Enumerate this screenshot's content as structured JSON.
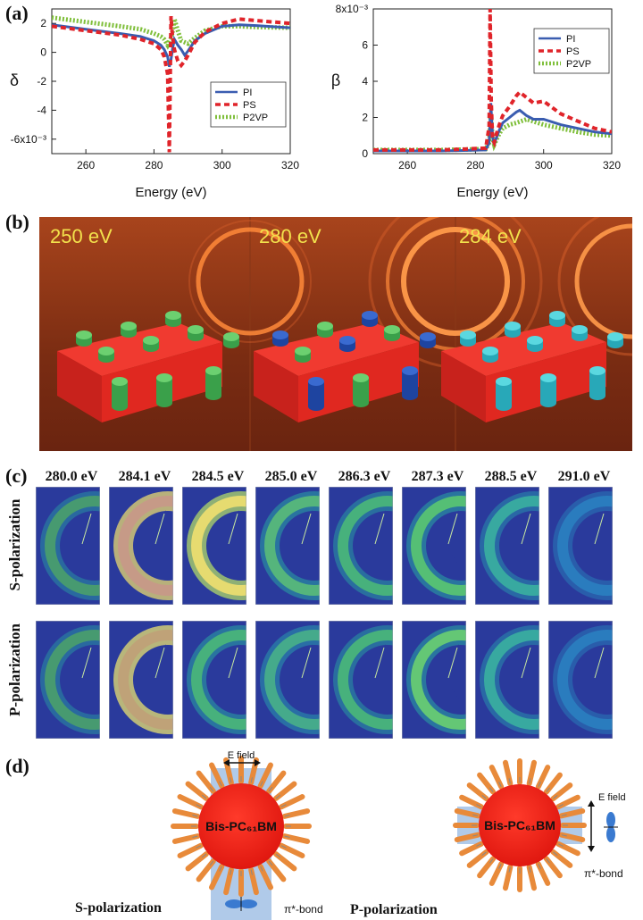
{
  "panels": {
    "a": "(a)",
    "b": "(b)",
    "c": "(c)",
    "d": "(d)"
  },
  "chart_data": [
    {
      "type": "line",
      "ylabel": "δ",
      "xlabel": "Energy (eV)",
      "xlim": [
        250,
        320
      ],
      "ylim": [
        -7,
        3
      ],
      "xticks": [
        "260",
        "280",
        "300",
        "320"
      ],
      "yticks": [
        "2",
        "0",
        "-2",
        "-4",
        "-6x10⁻³"
      ],
      "legend": [
        "PI",
        "PS",
        "P2VP"
      ],
      "series": [
        {
          "name": "PI",
          "color": "#3a5db0",
          "x": [
            250,
            260,
            270,
            276,
            280,
            282,
            283,
            284,
            284.5,
            285,
            285.5,
            286,
            287,
            288,
            289,
            290,
            292,
            295,
            300,
            305,
            310,
            320
          ],
          "y": [
            1.9,
            1.6,
            1.3,
            1.1,
            0.8,
            0.5,
            0.2,
            -0.3,
            -1.0,
            -0.5,
            0.3,
            0.9,
            0.5,
            0.2,
            -0.2,
            0.1,
            0.8,
            1.3,
            1.8,
            1.9,
            1.85,
            1.7
          ]
        },
        {
          "name": "PS",
          "color": "#e0242a",
          "x": [
            250,
            260,
            270,
            276,
            280,
            282,
            283,
            284,
            284.5,
            285,
            285.3,
            285.6,
            286,
            287,
            288,
            289,
            290,
            292,
            295,
            300,
            305,
            310,
            320
          ],
          "y": [
            1.8,
            1.5,
            1.2,
            0.9,
            0.6,
            0.2,
            -0.3,
            -1.5,
            -6.9,
            2.5,
            1.5,
            0.8,
            0.2,
            -0.6,
            -0.9,
            -0.6,
            -0.2,
            0.7,
            1.4,
            2.0,
            2.3,
            2.2,
            2.0
          ]
        },
        {
          "name": "P2VP",
          "color": "#7fbf3a",
          "x": [
            250,
            260,
            270,
            276,
            280,
            282,
            283,
            284,
            285,
            285.5,
            286,
            287,
            288,
            290,
            292,
            295,
            300,
            305,
            310,
            320
          ],
          "y": [
            2.4,
            2.1,
            1.8,
            1.6,
            1.3,
            1.1,
            0.9,
            0.5,
            1.0,
            1.5,
            2.3,
            1.5,
            0.8,
            0.6,
            1.0,
            1.5,
            1.8,
            1.8,
            1.75,
            1.7
          ]
        }
      ]
    },
    {
      "type": "line",
      "ylabel": "β",
      "xlabel": "Energy (eV)",
      "xlim": [
        250,
        320
      ],
      "ylim": [
        0,
        8
      ],
      "xticks": [
        "260",
        "280",
        "300",
        "320"
      ],
      "yticks": [
        "8x10⁻³",
        "6",
        "4",
        "2",
        "0"
      ],
      "legend": [
        "PI",
        "PS",
        "P2VP"
      ],
      "series": [
        {
          "name": "PI",
          "color": "#3a5db0",
          "x": [
            250,
            270,
            283,
            284,
            284.5,
            285,
            285.5,
            286,
            287,
            288,
            290,
            292,
            293,
            295,
            297,
            300,
            305,
            310,
            315,
            320
          ],
          "y": [
            0.15,
            0.15,
            0.2,
            0.6,
            2.8,
            1.0,
            0.5,
            0.8,
            1.3,
            1.7,
            2.0,
            2.3,
            2.4,
            2.1,
            1.9,
            1.9,
            1.6,
            1.4,
            1.2,
            1.1
          ]
        },
        {
          "name": "PS",
          "color": "#e0242a",
          "x": [
            250,
            270,
            283,
            284,
            284.3,
            284.6,
            285,
            285.5,
            286,
            287,
            288,
            290,
            292,
            293,
            295,
            297,
            300,
            305,
            310,
            315,
            320
          ],
          "y": [
            0.2,
            0.2,
            0.3,
            1.5,
            8.0,
            3.0,
            0.8,
            0.6,
            1.0,
            1.6,
            2.1,
            2.6,
            3.2,
            3.4,
            3.1,
            2.8,
            2.9,
            2.2,
            1.8,
            1.4,
            1.2
          ]
        },
        {
          "name": "P2VP",
          "color": "#7fbf3a",
          "x": [
            250,
            270,
            283,
            284,
            284.5,
            285,
            285.5,
            286,
            287,
            288,
            290,
            292,
            295,
            300,
            305,
            310,
            315,
            320
          ],
          "y": [
            0.2,
            0.2,
            0.25,
            0.6,
            2.2,
            0.9,
            0.5,
            0.7,
            1.1,
            1.4,
            1.6,
            1.7,
            1.9,
            1.6,
            1.4,
            1.2,
            1.05,
            1.0
          ]
        }
      ]
    }
  ],
  "banner": {
    "labels": [
      "250 eV",
      "280 eV",
      "284 eV"
    ]
  },
  "grid": {
    "energies": [
      "280.0 eV",
      "284.1 eV",
      "284.5 eV",
      "285.0 eV",
      "286.3 eV",
      "287.3 eV",
      "288.5 eV",
      "291.0 eV"
    ],
    "rows": [
      "S-polarization",
      "P-polarization"
    ]
  },
  "schematic": {
    "efield": "E field",
    "pibond": "π*-bond",
    "molecule": "Bis-PC₆₁BM",
    "s_label": "S-polarization",
    "p_label": "P-polarization"
  }
}
